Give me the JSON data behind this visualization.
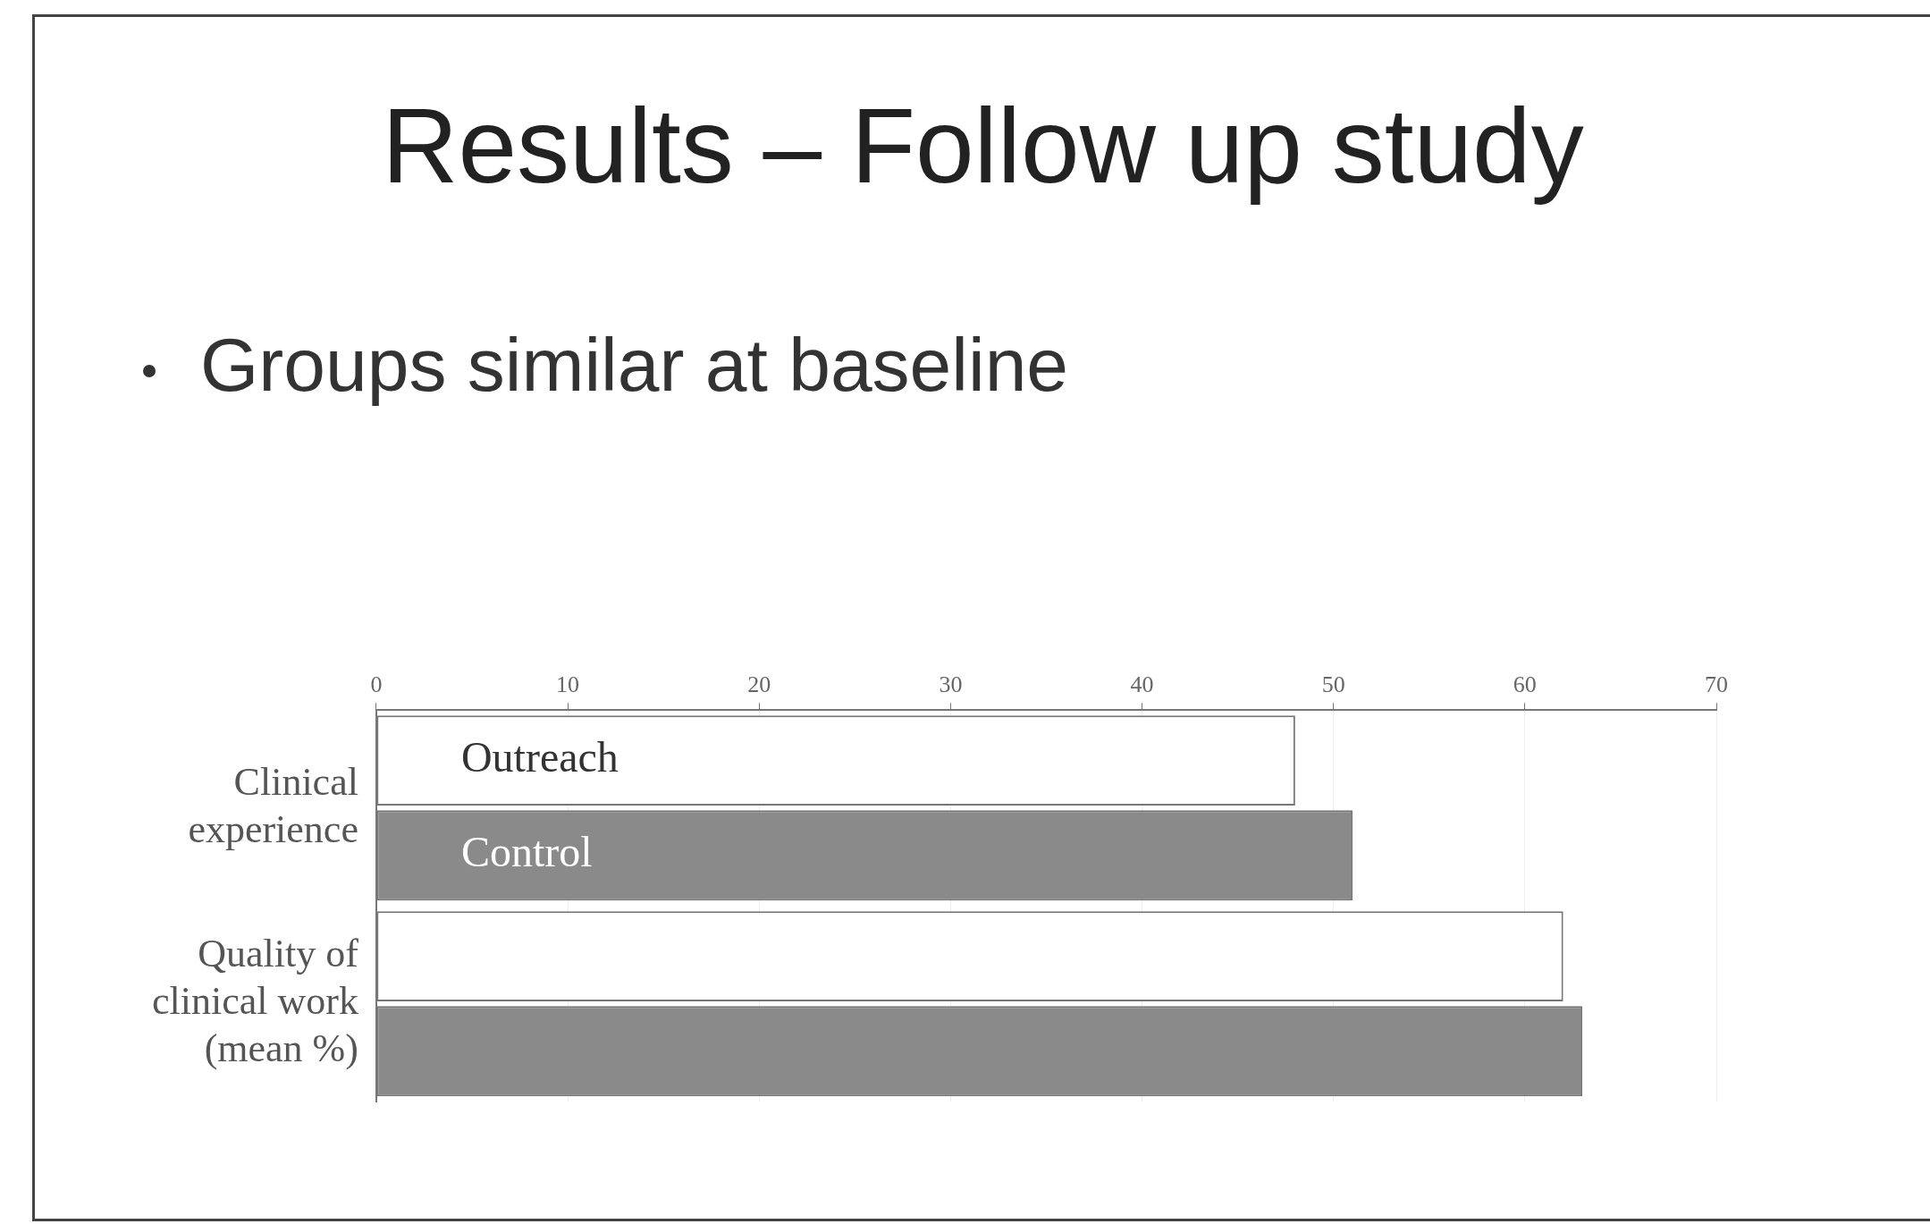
{
  "chart_data": {
    "type": "bar",
    "orientation": "horizontal",
    "title": "Results – Follow up study",
    "subtitle": "Groups similar at baseline",
    "categories": [
      "Clinical experience",
      "Quality of clinical work (mean %)"
    ],
    "series": [
      {
        "name": "Outreach",
        "color": "#ffffff",
        "values": [
          48,
          62
        ]
      },
      {
        "name": "Control",
        "color": "#8a8a8a",
        "values": [
          51,
          63
        ]
      }
    ],
    "xlim": [
      0,
      70
    ],
    "xticks": [
      0,
      10,
      20,
      30,
      40,
      50,
      60,
      70
    ],
    "grid": "x",
    "legend": false
  }
}
